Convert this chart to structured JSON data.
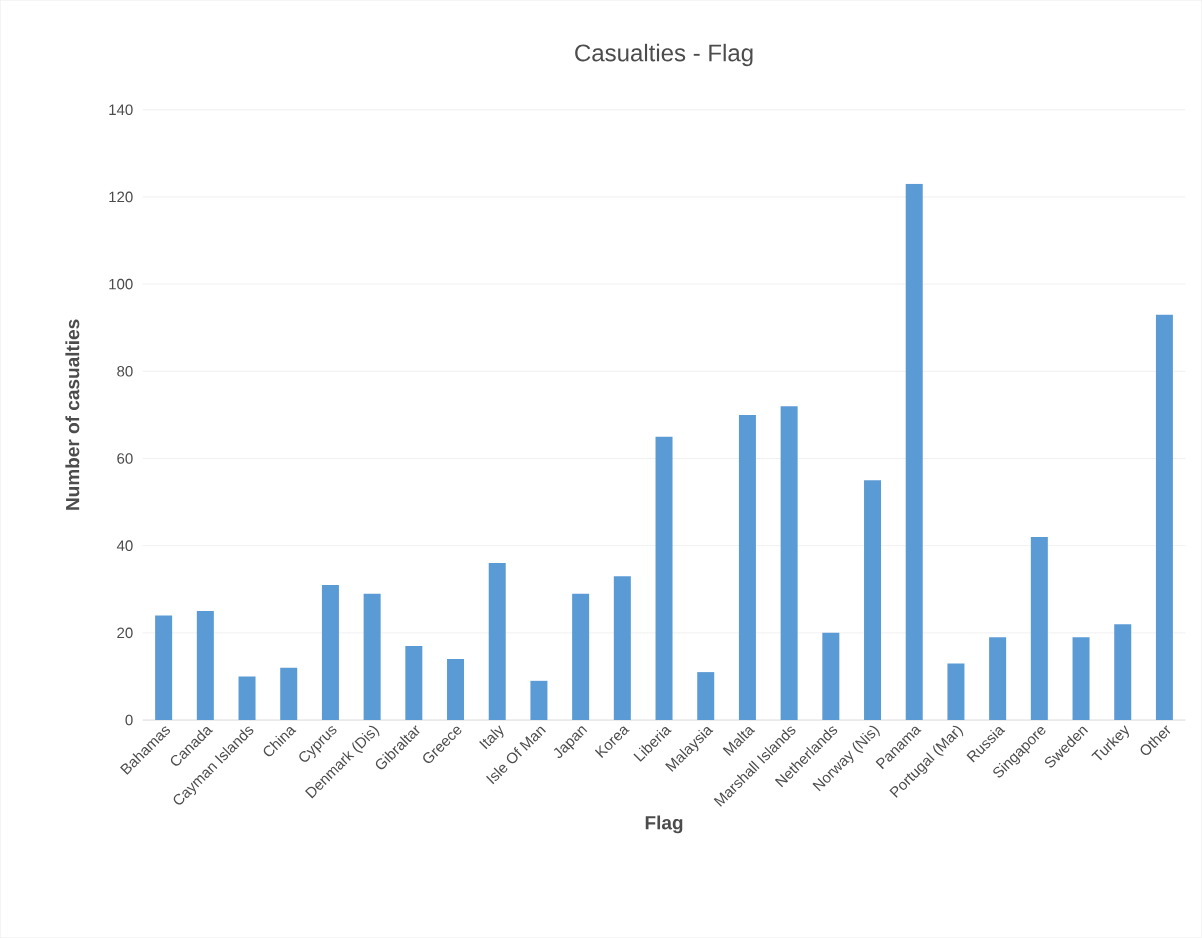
{
  "chart_data": {
    "type": "bar",
    "title": "Casualties - Flag",
    "xlabel": "Flag",
    "ylabel": "Number of casualties",
    "categories": [
      "Bahamas",
      "Canada",
      "Cayman Islands",
      "China",
      "Cyprus",
      "Denmark (Dis)",
      "Gibraltar",
      "Greece",
      "Italy",
      "Isle Of Man",
      "Japan",
      "Korea",
      "Liberia",
      "Malaysia",
      "Malta",
      "Marshall Islands",
      "Netherlands",
      "Norway (Nis)",
      "Panama",
      "Portugal (Mar)",
      "Russia",
      "Singapore",
      "Sweden",
      "Turkey",
      "Other"
    ],
    "values": [
      24,
      25,
      10,
      12,
      31,
      29,
      17,
      14,
      36,
      9,
      29,
      33,
      65,
      11,
      70,
      72,
      20,
      55,
      123,
      13,
      19,
      42,
      19,
      22,
      93
    ],
    "color": "#5b9bd5",
    "ylim": [
      0,
      140
    ],
    "yticks": [
      0,
      20,
      40,
      60,
      80,
      100,
      120,
      140
    ],
    "grid": "y"
  }
}
